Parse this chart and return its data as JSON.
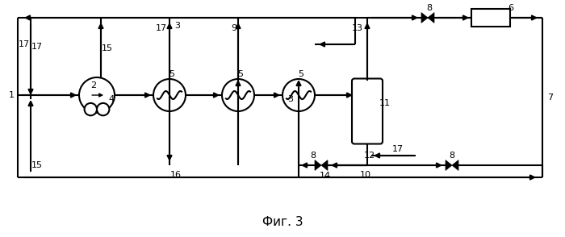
{
  "title": "Фиг. 3",
  "bg_color": "#ffffff",
  "line_color": "#000000",
  "lw": 1.5,
  "figsize": [
    7.0,
    2.94
  ],
  "dpi": 100
}
